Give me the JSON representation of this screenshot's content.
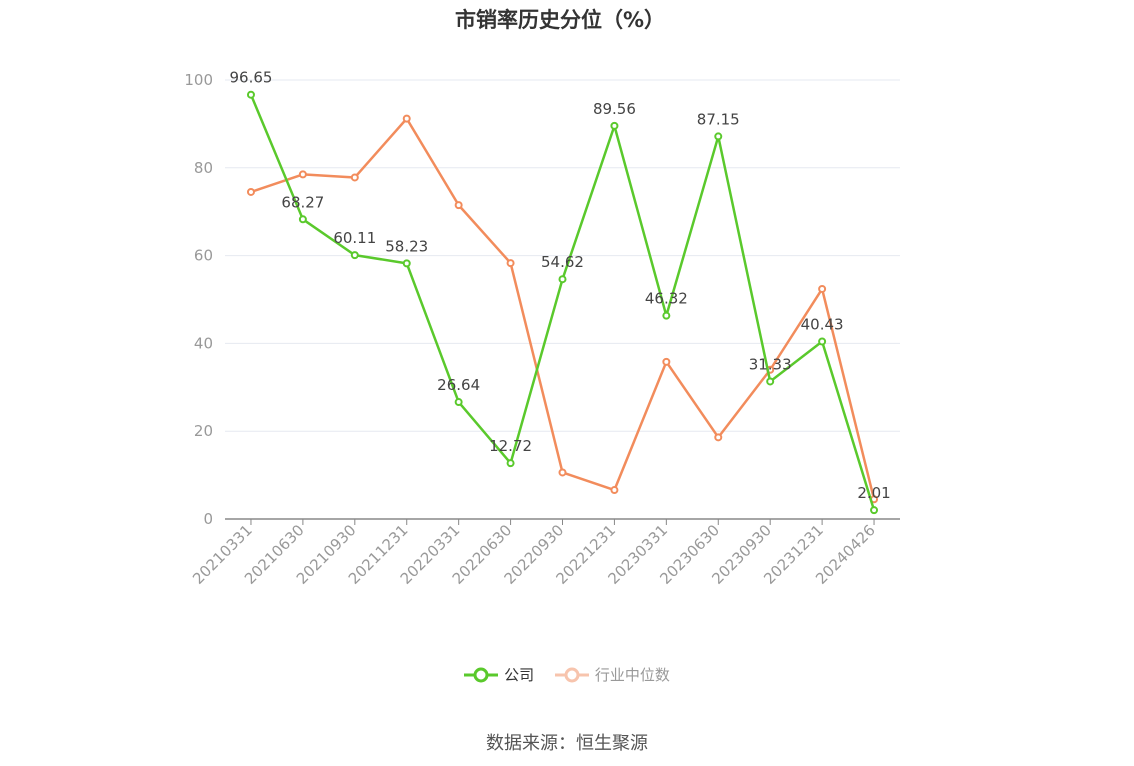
{
  "chart_data": {
    "type": "line",
    "title": "市销率历史分位（%）",
    "categories": [
      "20210331",
      "20210630",
      "20210930",
      "20211231",
      "20220331",
      "20220630",
      "20220930",
      "20221231",
      "20230331",
      "20230630",
      "20230930",
      "20231231",
      "20240426"
    ],
    "series": [
      {
        "name": "公司",
        "color": "#5ac92c",
        "values": [
          96.65,
          68.27,
          60.11,
          58.23,
          26.64,
          12.72,
          54.62,
          89.56,
          46.32,
          87.15,
          31.33,
          40.43,
          2.01
        ],
        "labels": [
          "96.65",
          "68.27",
          "60.11",
          "58.23",
          "26.64",
          "12.72",
          "54.62",
          "89.56",
          "46.32",
          "87.15",
          "31.33",
          "40.43",
          "2.01"
        ]
      },
      {
        "name": "行业中位数",
        "color": "#f28c5c",
        "values": [
          74.5,
          78.5,
          77.8,
          91.2,
          71.5,
          58.3,
          10.6,
          6.6,
          35.8,
          18.6,
          34.0,
          52.4,
          4.5
        ]
      }
    ],
    "ylim": [
      0,
      100
    ],
    "yticks": [
      "0",
      "20",
      "40",
      "60",
      "80",
      "100"
    ],
    "grid": true,
    "legend_position": "bottom-center"
  },
  "source": "数据来源：恒生聚源"
}
